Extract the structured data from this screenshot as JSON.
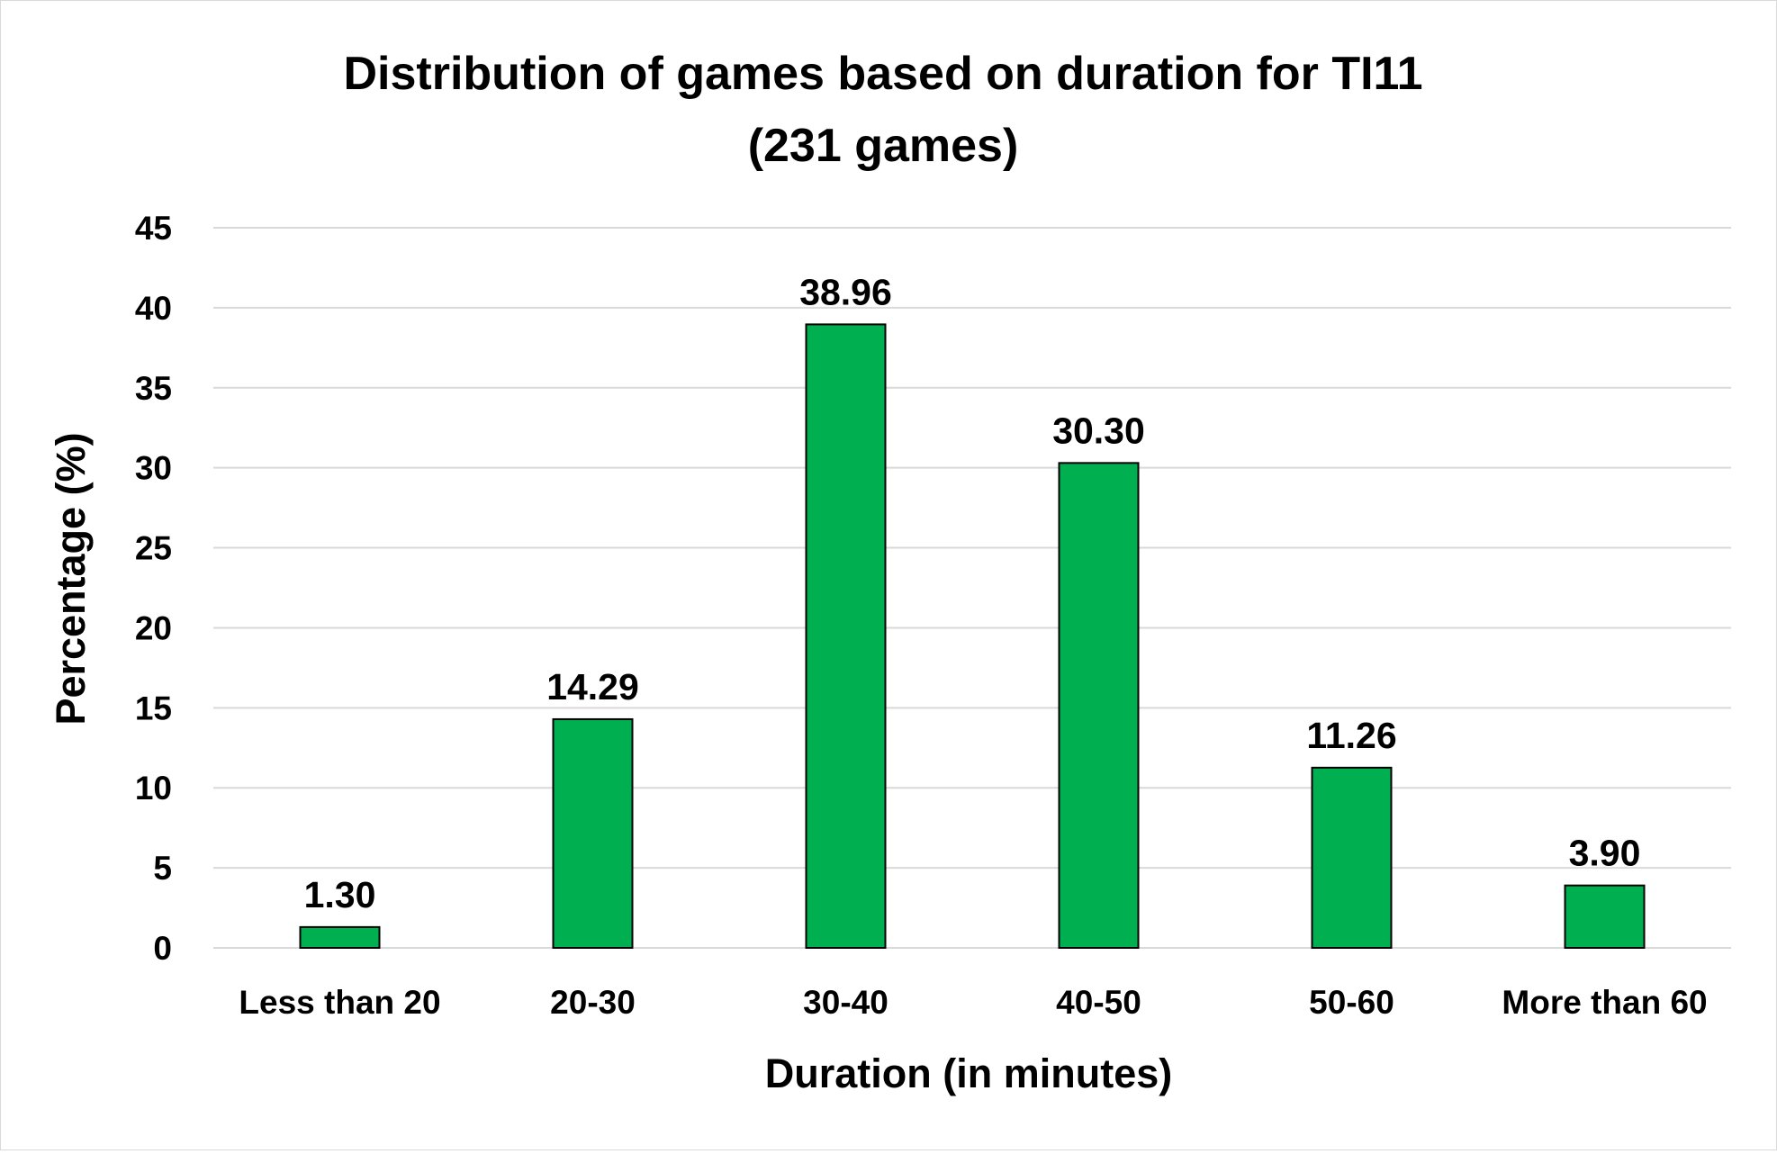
{
  "chart_data": {
    "type": "bar",
    "title_lines": [
      "Distribution of games based on duration for TI11",
      "(231 games)"
    ],
    "xlabel": "Duration (in minutes)",
    "ylabel": "Percentage (%)",
    "categories": [
      "Less than 20",
      "20-30",
      "30-40",
      "40-50",
      "50-60",
      "More than 60"
    ],
    "values": [
      1.3,
      14.29,
      38.96,
      30.3,
      11.26,
      3.9
    ],
    "data_labels": [
      "1.30",
      "14.29",
      "38.96",
      "30.30",
      "11.26",
      "3.90"
    ],
    "ylim": [
      0,
      45
    ],
    "yticks": [
      0,
      5,
      10,
      15,
      20,
      25,
      30,
      35,
      40,
      45
    ],
    "grid": true,
    "legend": "none",
    "colors": {
      "bar_fill": "#00B050",
      "bar_stroke": "#000000",
      "grid": "#d9d9d9"
    }
  }
}
